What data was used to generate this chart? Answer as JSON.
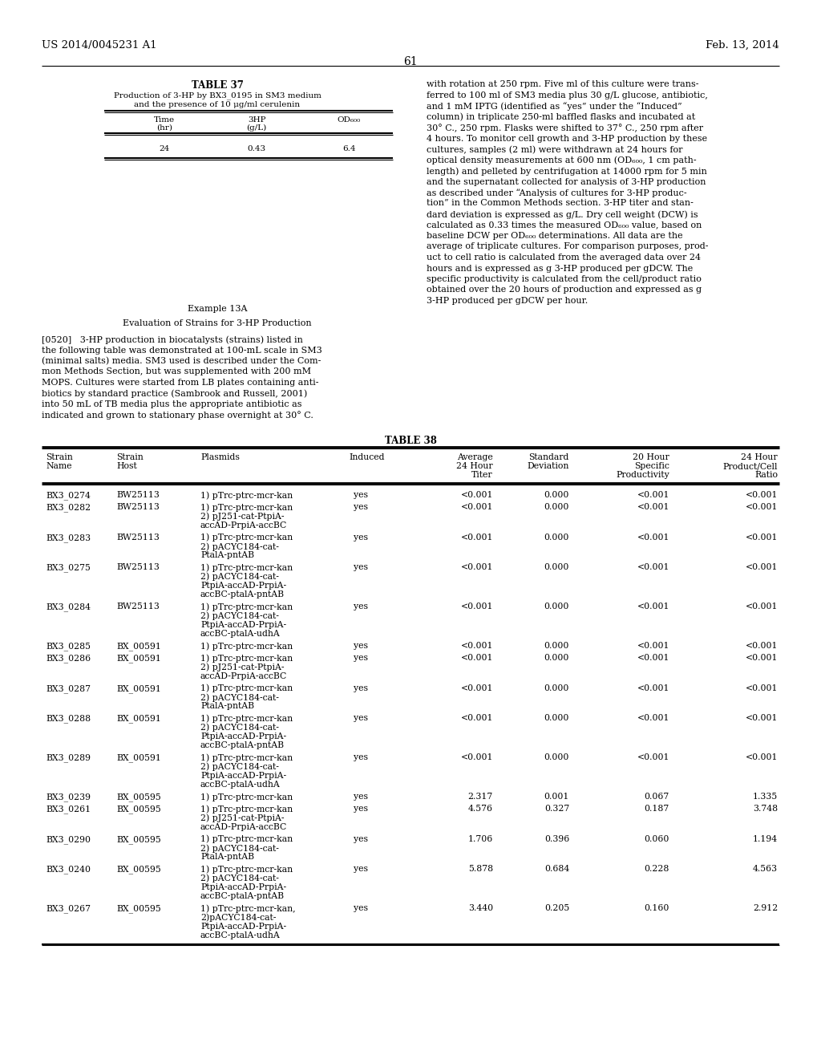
{
  "header_left": "US 2014/0045231 A1",
  "header_right": "Feb. 13, 2014",
  "page_number": "61",
  "table37_title": "TABLE 37",
  "table37_subtitle1": "Production of 3-HP by BX3_0195 in SM3 medium",
  "table37_subtitle2": "and the presence of 10 μg/ml cerulenin",
  "table38_title": "TABLE 38",
  "table38_rows": [
    [
      "BX3_0274",
      "BW25113",
      "1) pTrc-ptrc-mcr-kan",
      "yes",
      "<0.001",
      "0.000",
      "<0.001",
      "<0.001"
    ],
    [
      "BX3_0282",
      "BW25113",
      "1) pTrc-ptrc-mcr-kan\n2) pJ251-cat-PtpiA-\naccAD-PrpiA-accBC",
      "yes",
      "<0.001",
      "0.000",
      "<0.001",
      "<0.001"
    ],
    [
      "BX3_0283",
      "BW25113",
      "1) pTrc-ptrc-mcr-kan\n2) pACYC184-cat-\nPtalA-pntAB",
      "yes",
      "<0.001",
      "0.000",
      "<0.001",
      "<0.001"
    ],
    [
      "BX3_0275",
      "BW25113",
      "1) pTrc-ptrc-mcr-kan\n2) pACYC184-cat-\nPtpiA-accAD-PrpiA-\naccBC-ptalA-pntAB",
      "yes",
      "<0.001",
      "0.000",
      "<0.001",
      "<0.001"
    ],
    [
      "BX3_0284",
      "BW25113",
      "1) pTrc-ptrc-mcr-kan\n2) pACYC184-cat-\nPtpiA-accAD-PrpiA-\naccBC-ptalA-udhA",
      "yes",
      "<0.001",
      "0.000",
      "<0.001",
      "<0.001"
    ],
    [
      "BX3_0285",
      "BX_00591",
      "1) pTrc-ptrc-mcr-kan",
      "yes",
      "<0.001",
      "0.000",
      "<0.001",
      "<0.001"
    ],
    [
      "BX3_0286",
      "BX_00591",
      "1) pTrc-ptrc-mcr-kan\n2) pJ251-cat-PtpiA-\naccAD-PrpiA-accBC",
      "yes",
      "<0.001",
      "0.000",
      "<0.001",
      "<0.001"
    ],
    [
      "BX3_0287",
      "BX_00591",
      "1) pTrc-ptrc-mcr-kan\n2) pACYC184-cat-\nPtalA-pntAB",
      "yes",
      "<0.001",
      "0.000",
      "<0.001",
      "<0.001"
    ],
    [
      "BX3_0288",
      "BX_00591",
      "1) pTrc-ptrc-mcr-kan\n2) pACYC184-cat-\nPtpiA-accAD-PrpiA-\naccBC-ptalA-pntAB",
      "yes",
      "<0.001",
      "0.000",
      "<0.001",
      "<0.001"
    ],
    [
      "BX3_0289",
      "BX_00591",
      "1) pTrc-ptrc-mcr-kan\n2) pACYC184-cat-\nPtpiA-accAD-PrpiA-\naccBC-ptalA-udhA",
      "yes",
      "<0.001",
      "0.000",
      "<0.001",
      "<0.001"
    ],
    [
      "BX3_0239",
      "BX_00595",
      "1) pTrc-ptrc-mcr-kan",
      "yes",
      "2.317",
      "0.001",
      "0.067",
      "1.335"
    ],
    [
      "BX3_0261",
      "BX_00595",
      "1) pTrc-ptrc-mcr-kan\n2) pJ251-cat-PtpiA-\naccAD-PrpiA-accBC",
      "yes",
      "4.576",
      "0.327",
      "0.187",
      "3.748"
    ],
    [
      "BX3_0290",
      "BX_00595",
      "1) pTrc-ptrc-mcr-kan\n2) pACYC184-cat-\nPtalA-pntAB",
      "yes",
      "1.706",
      "0.396",
      "0.060",
      "1.194"
    ],
    [
      "BX3_0240",
      "BX_00595",
      "1) pTrc-ptrc-mcr-kan\n2) pACYC184-cat-\nPtpiA-accAD-PrpiA-\naccBC-ptalA-pntAB",
      "yes",
      "5.878",
      "0.684",
      "0.228",
      "4.563"
    ],
    [
      "BX3_0267",
      "BX_00595",
      "1) pTrc-ptrc-mcr-kan,\n2)pACYC184-cat-\nPtpiA-accAD-PrpiA-\naccBC-ptalA-udhA",
      "yes",
      "3.440",
      "0.205",
      "0.160",
      "2.912"
    ]
  ],
  "right_lines": [
    "with rotation at 250 rpm. Five ml of this culture were trans-",
    "ferred to 100 ml of SM3 media plus 30 g/L glucose, antibiotic,",
    "and 1 mM IPTG (identified as “yes” under the “Induced”",
    "column) in triplicate 250-ml baffled flasks and incubated at",
    "30° C., 250 rpm. Flasks were shifted to 37° C., 250 rpm after",
    "4 hours. To monitor cell growth and 3-HP production by these",
    "cultures, samples (2 ml) were withdrawn at 24 hours for",
    "optical density measurements at 600 nm (OD₆₀₀, 1 cm path-",
    "length) and pelleted by centrifugation at 14000 rpm for 5 min",
    "and the supernatant collected for analysis of 3-HP production",
    "as described under “Analysis of cultures for 3-HP produc-",
    "tion” in the Common Methods section. 3-HP titer and stan-",
    "dard deviation is expressed as g/L. Dry cell weight (DCW) is",
    "calculated as 0.33 times the measured OD₆₀₀ value, based on",
    "baseline DCW per OD₆₀₀ determinations. All data are the",
    "average of triplicate cultures. For comparison purposes, prod-",
    "uct to cell ratio is calculated from the averaged data over 24",
    "hours and is expressed as g 3-HP produced per gDCW. The",
    "specific productivity is calculated from the cell/product ratio",
    "obtained over the 20 hours of production and expressed as g",
    "3-HP produced per gDCW per hour."
  ],
  "left_para_lines": [
    "[0520]   3-HP production in biocatalysts (strains) listed in",
    "the following table was demonstrated at 100-mL scale in SM3",
    "(minimal salts) media. SM3 used is described under the Com-",
    "mon Methods Section, but was supplemented with 200 mM",
    "MOPS. Cultures were started from LB plates containing anti-",
    "biotics by standard practice (Sambrook and Russell, 2001)",
    "into 50 mL of TB media plus the appropriate antibiotic as",
    "indicated and grown to stationary phase overnight at 30° C."
  ],
  "example_heading": "Example 13A",
  "eval_heading": "Evaluation of Strains for 3-HP Production",
  "bg_color": "#ffffff",
  "text_color": "#000000"
}
